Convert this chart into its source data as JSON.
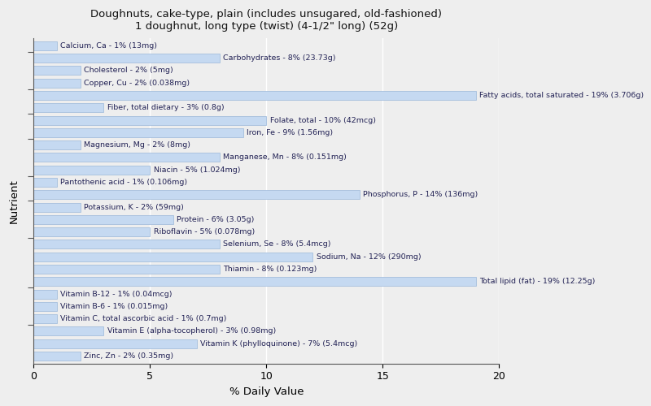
{
  "title_line1": "Doughnuts, cake-type, plain (includes unsugared, old-fashioned)",
  "title_line2": "1 doughnut, long type (twist) (4-1/2\" long) (52g)",
  "xlabel": "% Daily Value",
  "ylabel": "Nutrient",
  "xlim": [
    0,
    20
  ],
  "xticks": [
    0,
    5,
    10,
    15,
    20
  ],
  "background_color": "#eeeeee",
  "bar_color": "#c5d9f1",
  "bar_edge_color": "#9ab7d9",
  "text_color": "#222255",
  "title_fontsize": 9.5,
  "label_fontsize": 6.8,
  "nutrients": [
    {
      "label": "Calcium, Ca - 1% (13mg)",
      "value": 1
    },
    {
      "label": "Carbohydrates - 8% (23.73g)",
      "value": 8
    },
    {
      "label": "Cholesterol - 2% (5mg)",
      "value": 2
    },
    {
      "label": "Copper, Cu - 2% (0.038mg)",
      "value": 2
    },
    {
      "label": "Fatty acids, total saturated - 19% (3.706g)",
      "value": 19
    },
    {
      "label": "Fiber, total dietary - 3% (0.8g)",
      "value": 3
    },
    {
      "label": "Folate, total - 10% (42mcg)",
      "value": 10
    },
    {
      "label": "Iron, Fe - 9% (1.56mg)",
      "value": 9
    },
    {
      "label": "Magnesium, Mg - 2% (8mg)",
      "value": 2
    },
    {
      "label": "Manganese, Mn - 8% (0.151mg)",
      "value": 8
    },
    {
      "label": "Niacin - 5% (1.024mg)",
      "value": 5
    },
    {
      "label": "Pantothenic acid - 1% (0.106mg)",
      "value": 1
    },
    {
      "label": "Phosphorus, P - 14% (136mg)",
      "value": 14
    },
    {
      "label": "Potassium, K - 2% (59mg)",
      "value": 2
    },
    {
      "label": "Protein - 6% (3.05g)",
      "value": 6
    },
    {
      "label": "Riboflavin - 5% (0.078mg)",
      "value": 5
    },
    {
      "label": "Selenium, Se - 8% (5.4mcg)",
      "value": 8
    },
    {
      "label": "Sodium, Na - 12% (290mg)",
      "value": 12
    },
    {
      "label": "Thiamin - 8% (0.123mg)",
      "value": 8
    },
    {
      "label": "Total lipid (fat) - 19% (12.25g)",
      "value": 19
    },
    {
      "label": "Vitamin B-12 - 1% (0.04mcg)",
      "value": 1
    },
    {
      "label": "Vitamin B-6 - 1% (0.015mg)",
      "value": 1
    },
    {
      "label": "Vitamin C, total ascorbic acid - 1% (0.7mg)",
      "value": 1
    },
    {
      "label": "Vitamin E (alpha-tocopherol) - 3% (0.98mg)",
      "value": 3
    },
    {
      "label": "Vitamin K (phylloquinone) - 7% (5.4mcg)",
      "value": 7
    },
    {
      "label": "Zinc, Zn - 2% (0.35mg)",
      "value": 2
    }
  ]
}
